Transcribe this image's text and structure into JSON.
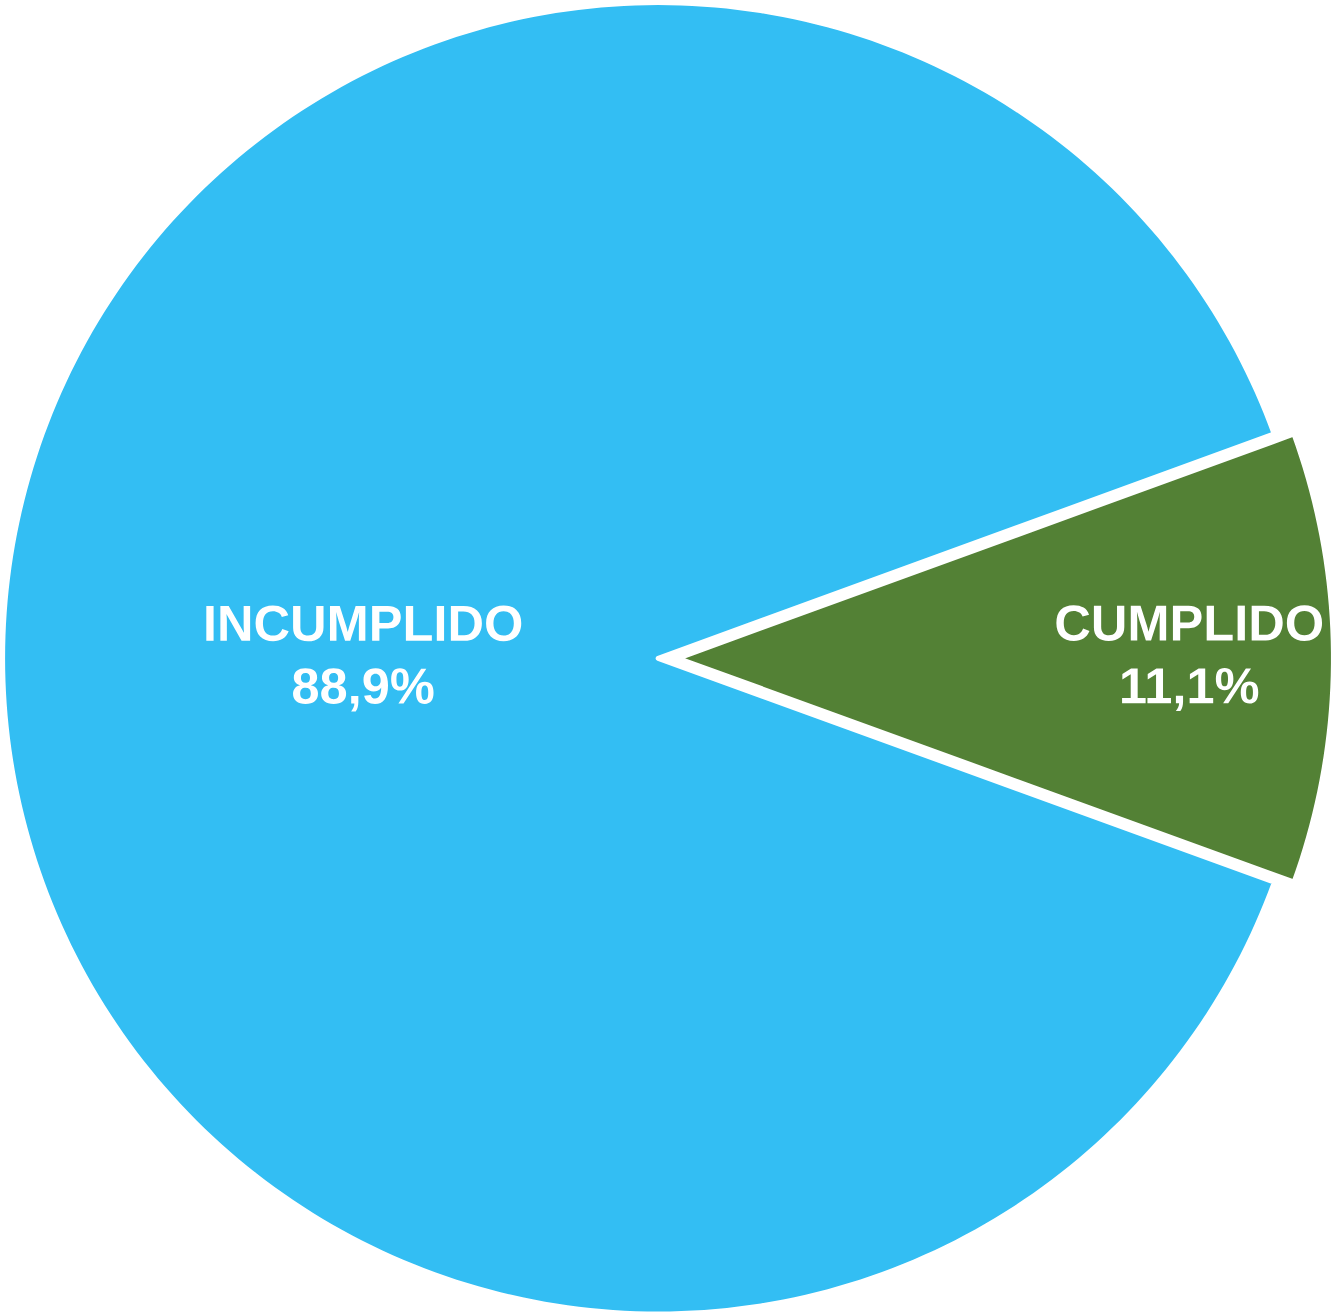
{
  "chart_data": {
    "type": "pie",
    "categories": [
      "INCUMPLIDO",
      "CUMPLIDO"
    ],
    "values": [
      88.9,
      11.1
    ],
    "value_labels": [
      "88,9%",
      "11,1%"
    ],
    "colors": [
      "#33bef3",
      "#538135"
    ]
  }
}
